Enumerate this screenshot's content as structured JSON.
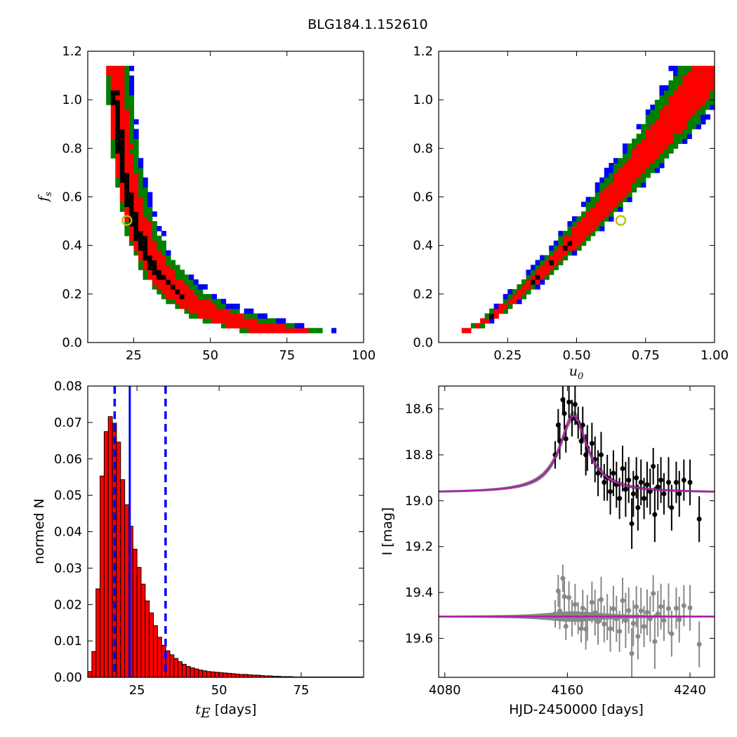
{
  "figure_title": "BLG184.1.152610",
  "chart_data": [
    {
      "type": "heatmap",
      "panel": "top-left",
      "xlabel": "",
      "ylabel": "f",
      "ylabel_sub": "s",
      "xlim": [
        10,
        100
      ],
      "ylim": [
        0.0,
        1.2
      ],
      "xticks": [
        "25",
        "50",
        "75",
        "100"
      ],
      "xtick_values": [
        25,
        50,
        75,
        100
      ],
      "yticks": [
        "0.0",
        "0.2",
        "0.4",
        "0.6",
        "0.8",
        "1.0",
        "1.2"
      ],
      "ytick_values": [
        0.0,
        0.2,
        0.4,
        0.6,
        0.8,
        1.0,
        1.2
      ],
      "levels_colors": [
        "#0000ff",
        "#008000",
        "#ff0000",
        "#000000"
      ],
      "best_fit": {
        "x": 22.8,
        "y": 0.503
      },
      "marker_color": "#bfbf00"
    },
    {
      "type": "heatmap",
      "panel": "top-right",
      "xlabel": "u",
      "xlabel_sub": "0",
      "ylabel": "",
      "xlim": [
        0.0,
        1.0
      ],
      "ylim": [
        0.0,
        1.2
      ],
      "xticks": [
        "0.25",
        "0.50",
        "0.75",
        "1.00"
      ],
      "xtick_values": [
        0.25,
        0.5,
        0.75,
        1.0
      ],
      "yticks": [
        "0.0",
        "0.2",
        "0.4",
        "0.6",
        "0.8",
        "1.0",
        "1.2"
      ],
      "ytick_values": [
        0.0,
        0.2,
        0.4,
        0.6,
        0.8,
        1.0,
        1.2
      ],
      "levels_colors": [
        "#0000ff",
        "#008000",
        "#ff0000",
        "#000000"
      ],
      "best_fit": {
        "x": 0.66,
        "y": 0.503
      },
      "marker_color": "#bfbf00"
    },
    {
      "type": "bar",
      "panel": "bottom-left",
      "xlabel": "t",
      "xlabel_sub": "E",
      "xlabel_unit": "[days]",
      "ylabel": "normed N",
      "xlim": [
        10,
        94
      ],
      "ylim": [
        0.0,
        0.08
      ],
      "xticks": [
        "25",
        "50",
        "75"
      ],
      "xtick_values": [
        25,
        50,
        75
      ],
      "yticks": [
        "0.00",
        "0.01",
        "0.02",
        "0.03",
        "0.04",
        "0.05",
        "0.06",
        "0.07",
        "0.08"
      ],
      "ytick_values": [
        0.0,
        0.01,
        0.02,
        0.03,
        0.04,
        0.05,
        0.06,
        0.07,
        0.08
      ],
      "bin_start": 10.0,
      "bin_width": 1.25,
      "values": [
        0.0016,
        0.0071,
        0.0243,
        0.0553,
        0.0675,
        0.0716,
        0.0698,
        0.0646,
        0.0543,
        0.0474,
        0.0415,
        0.0352,
        0.0302,
        0.0256,
        0.021,
        0.0177,
        0.0142,
        0.011,
        0.0088,
        0.0073,
        0.0062,
        0.0052,
        0.0043,
        0.0036,
        0.003,
        0.0026,
        0.0023,
        0.002,
        0.0018,
        0.0016,
        0.0015,
        0.0014,
        0.0013,
        0.0012,
        0.0011,
        0.001,
        0.0009,
        0.0008,
        0.0008,
        0.0007,
        0.0006,
        0.0006,
        0.0005,
        0.0004,
        0.0004,
        0.0003,
        0.0003,
        0.0002,
        0.0002,
        0.0002,
        0.0001,
        0.0001,
        0.0001,
        0.0001,
        0.0001,
        0.0001,
        0.0001,
        0.0001,
        0.0001,
        0.0001,
        0.0001,
        0.0001,
        0.0001,
        0.0001,
        0.0001,
        0.0001,
        0.0001
      ],
      "bar_color": "#ff0000",
      "median": 22.8,
      "lower": 18.2,
      "upper": 33.7,
      "line_color": "#0000ff"
    },
    {
      "type": "line",
      "panel": "bottom-right",
      "xlabel": "HJD-2450000 [days]",
      "ylabel": "I [mag]",
      "xlim": [
        4076,
        4256
      ],
      "ylim": [
        19.77,
        18.5
      ],
      "y_inverted": true,
      "xticks": [
        "4080",
        "4160",
        "4240"
      ],
      "xtick_values": [
        4080,
        4160,
        4240
      ],
      "yticks": [
        "18.6",
        "18.8",
        "19.0",
        "19.2",
        "19.4",
        "19.6"
      ],
      "ytick_values": [
        18.6,
        18.8,
        19.0,
        19.2,
        19.4,
        19.6
      ],
      "model": {
        "baseline": 18.965,
        "peak_mag": 18.63,
        "t0": 4164.0,
        "width": 11.0,
        "color": "#aa22aa"
      },
      "residual_baseline": 19.505,
      "data_color": "#000000",
      "residual_color": "#888888",
      "band_color": "#888888",
      "points": [
        {
          "t": 4152,
          "m": 18.8,
          "e": 0.06
        },
        {
          "t": 4154,
          "m": 18.67,
          "e": 0.07
        },
        {
          "t": 4155,
          "m": 18.74,
          "e": 0.08
        },
        {
          "t": 4157,
          "m": 18.56,
          "e": 0.06
        },
        {
          "t": 4158,
          "m": 18.62,
          "e": 0.07
        },
        {
          "t": 4159,
          "m": 18.73,
          "e": 0.06
        },
        {
          "t": 4161,
          "m": 18.57,
          "e": 0.07
        },
        {
          "t": 4163,
          "m": 18.64,
          "e": 0.08
        },
        {
          "t": 4165,
          "m": 18.58,
          "e": 0.09
        },
        {
          "t": 4167,
          "m": 18.66,
          "e": 0.07
        },
        {
          "t": 4169,
          "m": 18.74,
          "e": 0.06
        },
        {
          "t": 4170,
          "m": 18.67,
          "e": 0.08
        },
        {
          "t": 4172,
          "m": 18.8,
          "e": 0.09
        },
        {
          "t": 4173,
          "m": 18.77,
          "e": 0.1
        },
        {
          "t": 4176,
          "m": 18.75,
          "e": 0.09
        },
        {
          "t": 4178,
          "m": 18.82,
          "e": 0.1
        },
        {
          "t": 4180,
          "m": 18.88,
          "e": 0.1
        },
        {
          "t": 4182,
          "m": 18.8,
          "e": 0.1
        },
        {
          "t": 4184,
          "m": 18.92,
          "e": 0.08
        },
        {
          "t": 4186,
          "m": 18.9,
          "e": 0.1
        },
        {
          "t": 4188,
          "m": 18.96,
          "e": 0.1
        },
        {
          "t": 4190,
          "m": 18.88,
          "e": 0.1
        },
        {
          "t": 4192,
          "m": 18.93,
          "e": 0.1
        },
        {
          "t": 4194,
          "m": 18.99,
          "e": 0.09
        },
        {
          "t": 4196,
          "m": 18.86,
          "e": 0.1
        },
        {
          "t": 4198,
          "m": 18.95,
          "e": 0.12
        },
        {
          "t": 4200,
          "m": 18.91,
          "e": 0.1
        },
        {
          "t": 4202,
          "m": 19.1,
          "e": 0.11
        },
        {
          "t": 4203,
          "m": 18.97,
          "e": 0.1
        },
        {
          "t": 4205,
          "m": 18.9,
          "e": 0.09
        },
        {
          "t": 4206,
          "m": 19.03,
          "e": 0.1
        },
        {
          "t": 4208,
          "m": 18.92,
          "e": 0.1
        },
        {
          "t": 4210,
          "m": 18.99,
          "e": 0.09
        },
        {
          "t": 4212,
          "m": 18.93,
          "e": 0.1
        },
        {
          "t": 4214,
          "m": 18.96,
          "e": 0.1
        },
        {
          "t": 4216,
          "m": 18.85,
          "e": 0.08
        },
        {
          "t": 4217,
          "m": 19.06,
          "e": 0.12
        },
        {
          "t": 4219,
          "m": 18.94,
          "e": 0.1
        },
        {
          "t": 4221,
          "m": 18.91,
          "e": 0.1
        },
        {
          "t": 4223,
          "m": 18.97,
          "e": 0.09
        },
        {
          "t": 4226,
          "m": 18.92,
          "e": 0.11
        },
        {
          "t": 4228,
          "m": 19.03,
          "e": 0.1
        },
        {
          "t": 4231,
          "m": 18.92,
          "e": 0.09
        },
        {
          "t": 4233,
          "m": 18.97,
          "e": 0.1
        },
        {
          "t": 4236,
          "m": 18.91,
          "e": 0.09
        },
        {
          "t": 4240,
          "m": 18.92,
          "e": 0.1
        },
        {
          "t": 4246,
          "m": 19.08,
          "e": 0.1
        }
      ]
    }
  ]
}
